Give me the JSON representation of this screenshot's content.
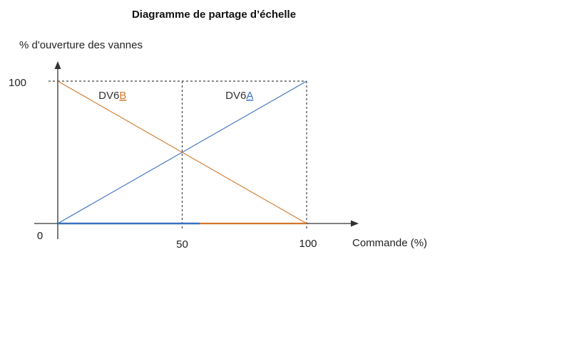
{
  "chart_data": {
    "type": "line",
    "title": "Diagramme de partage d’échelle",
    "ylabel": "% d'ouverture des vannes",
    "xlabel": "Commande (%)",
    "xlim": [
      0,
      100
    ],
    "ylim": [
      0,
      100
    ],
    "x_ticks": [
      "0",
      "50",
      "100"
    ],
    "y_ticks": [
      "100"
    ],
    "grid": "dashed at 50 and 100",
    "series": [
      {
        "name_prefix": "DV6",
        "name_letter": "A",
        "color": "#3a6fbf",
        "points": [
          [
            0,
            0
          ],
          [
            100,
            100
          ]
        ],
        "label_at": [
          73,
          90
        ]
      },
      {
        "name_prefix": "DV6",
        "name_letter": "B",
        "color": "#d2782a",
        "points": [
          [
            0,
            100
          ],
          [
            100,
            0
          ]
        ],
        "label_at": [
          22,
          90
        ]
      }
    ]
  }
}
